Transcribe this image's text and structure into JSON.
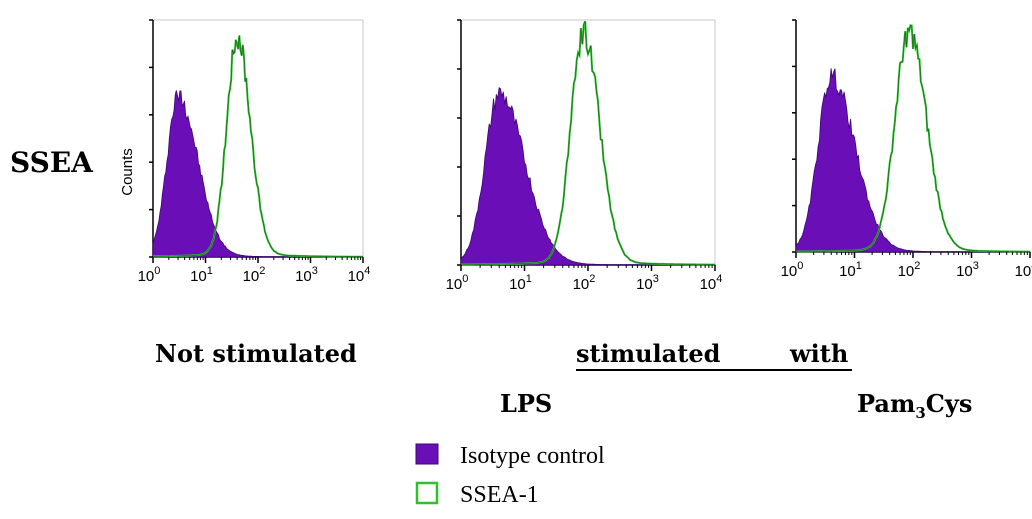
{
  "row_label": "SSEA",
  "y_label": "Counts",
  "x_tick_labels": [
    "10",
    "10",
    "10",
    "10",
    "10"
  ],
  "x_tick_exponents": [
    "0",
    "1",
    "2",
    "3",
    "4"
  ],
  "conditions": {
    "not_stimulated": "Not stimulated",
    "stimulated_prefix": "stimulated",
    "stimulated_suffix": "with",
    "lps": "LPS",
    "pam_prefix": "Pam",
    "pam_subscript": "3",
    "pam_suffix": "Cys"
  },
  "legend": {
    "isotype": "Isotype control",
    "ssea1": "SSEA-1"
  },
  "colors": {
    "isotype_fill": "#6a0fb8",
    "ssea1_line": "#2fbf2f"
  },
  "chart_data": [
    {
      "type": "area",
      "panel": "Not stimulated",
      "xscale": "log",
      "xlim": [
        1,
        10000
      ],
      "ylabel": "Counts",
      "series": [
        {
          "name": "Isotype control",
          "peak_x": 3,
          "peak_rel_height": 0.72,
          "width_decades": 0.28
        },
        {
          "name": "SSEA-1",
          "peak_x": 40,
          "peak_rel_height": 0.98,
          "width_decades": 0.22
        }
      ]
    },
    {
      "type": "area",
      "panel": "LPS",
      "xscale": "log",
      "xlim": [
        1,
        10000
      ],
      "series": [
        {
          "name": "Isotype control",
          "peak_x": 4,
          "peak_rel_height": 0.74,
          "width_decades": 0.3
        },
        {
          "name": "SSEA-1",
          "peak_x": 85,
          "peak_rel_height": 1.0,
          "width_decades": 0.22
        }
      ]
    },
    {
      "type": "area",
      "panel": "Pam3Cys",
      "xscale": "log",
      "xlim": [
        1,
        10000
      ],
      "series": [
        {
          "name": "Isotype control",
          "peak_x": 4,
          "peak_rel_height": 0.8,
          "width_decades": 0.3
        },
        {
          "name": "SSEA-1",
          "peak_x": 85,
          "peak_rel_height": 1.0,
          "width_decades": 0.26
        }
      ]
    }
  ]
}
